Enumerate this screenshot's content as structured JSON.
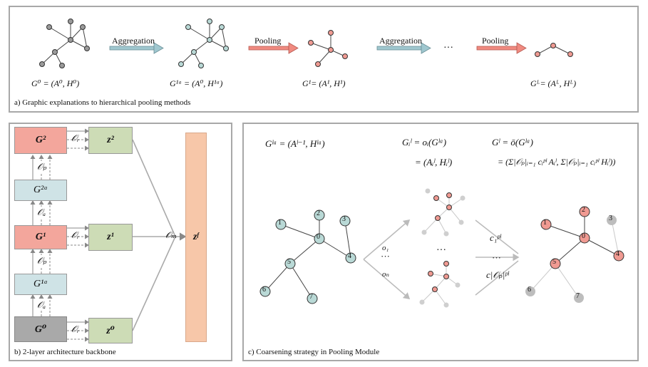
{
  "panel_a": {
    "caption": "a) Graphic explanations to hierarchical pooling methods",
    "arrow_aggregation_1": "Aggregation",
    "arrow_pooling_1": "Pooling",
    "arrow_aggregation_2": "Aggregation",
    "ellipsis": "···",
    "arrow_pooling_2": "Pooling",
    "graph_labels": [
      "G⁰ = (A⁰, H⁰)",
      "G¹ᵃ = (A⁰, H¹ᵃ)",
      "G¹= (A¹, H¹)",
      "Gᴸ= (Aᴸ, Hᴸ)"
    ]
  },
  "panel_b": {
    "caption": "b) 2-layer architecture backbone",
    "g2": "G²",
    "g2a": "G²ᵃ",
    "g1": "G¹",
    "g1a": "G¹ᵃ",
    "g0": "G⁰",
    "z2": "z²",
    "z1": "z¹",
    "z0": "z⁰",
    "zf": "zᶠ",
    "op_r": "𝒪ᵣ",
    "op_p": "𝒪ₚ",
    "op_a": "𝒪ₐ",
    "op_m": "𝒪ₘ"
  },
  "panel_c": {
    "caption": "c) Coarsening strategy in Pooling Module",
    "eq1": "Gˡᵃ = (Aˡ⁻¹, Hˡᵃ)",
    "eq2_top": "Gᵢˡ = oᵢ(Gˡᵃ)",
    "eq2_bottom": "= (Aᵢˡ, Hᵢˡ)",
    "eq3_top": "Gˡ = ō(Gˡᵃ)",
    "eq3_bottom": "= (Σ|𝒪ₚ|ᵢ₌₁ cᵢᵖˡ Aᵢˡ, Σ|𝒪ₚ|ᵢ₌₁ cᵢᵖˡ Hᵢˡ))",
    "node_labels": [
      "1",
      "2",
      "3",
      "0",
      "4",
      "5",
      "6",
      "7"
    ],
    "result_labels": [
      "1",
      "2",
      "3",
      "0",
      "4",
      "5",
      "6",
      "7"
    ],
    "o1": "o₁",
    "on": "oₙ",
    "dots": "···",
    "c1": "c₁ᵖˡ",
    "cn": "c|𝒪ₚ|ᵖˡ"
  },
  "colors": {
    "node_gray": "#9a9a9a",
    "node_teal": "#b9d9d6",
    "node_red": "#f09a92",
    "box_red": "#f3a69c",
    "box_blue": "#cfe3e6",
    "box_green": "#cddcb6",
    "box_gray": "#a9a9a9",
    "box_orange": "#f7c7a9",
    "arrow_blue": "#9fc7cf",
    "arrow_red": "#f08a80"
  }
}
